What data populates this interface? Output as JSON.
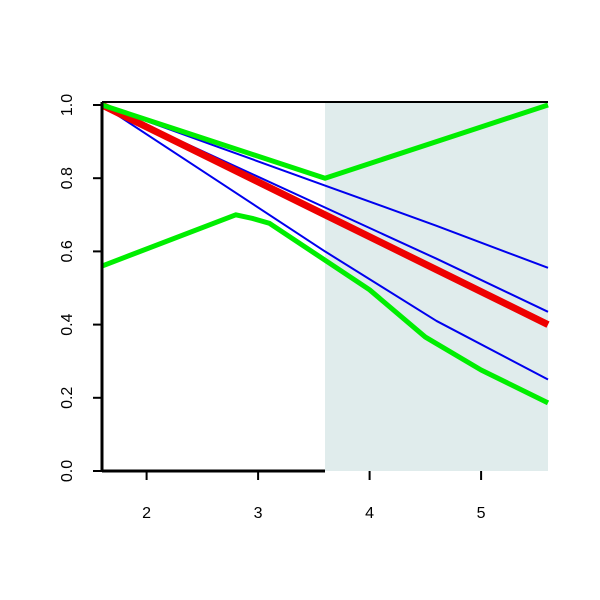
{
  "chart_data": {
    "type": "line",
    "xlim": [
      1.6,
      5.6
    ],
    "ylim": [
      0,
      1
    ],
    "xticks": [
      2,
      3,
      4,
      5
    ],
    "yticks": [
      {
        "value": 0,
        "label": "0.0"
      },
      {
        "value": 0.2,
        "label": "0.2"
      },
      {
        "value": 0.4,
        "label": "0.4"
      },
      {
        "value": 0.6,
        "label": "0.6"
      },
      {
        "value": 0.8,
        "label": "0.8"
      },
      {
        "value": 1,
        "label": "1.0"
      }
    ],
    "shaded_region": {
      "x": [
        3.6,
        5.6
      ],
      "color": "#e0ecec"
    },
    "series": [
      {
        "color": "#0000ee",
        "line_width": 2,
        "x": [
          1.6,
          2.6,
          3.6,
          4.6,
          5.6
        ],
        "values": [
          1.0,
          0.89,
          0.78,
          0.67,
          0.555
        ]
      },
      {
        "color": "#0000ee",
        "line_width": 2,
        "x": [
          1.6,
          2.6,
          3.6,
          4.6,
          5.6
        ],
        "values": [
          1.0,
          0.86,
          0.72,
          0.58,
          0.435
        ]
      },
      {
        "color": "#0000ee",
        "line_width": 2,
        "x": [
          1.6,
          2.6,
          3.6,
          4.6,
          5.6
        ],
        "values": [
          1.0,
          0.8,
          0.6,
          0.41,
          0.25
        ]
      },
      {
        "color": "#ee0000",
        "line_width": 7,
        "x": [
          1.6,
          2.6,
          3.6,
          4.6,
          5.6
        ],
        "values": [
          1.0,
          0.85,
          0.7,
          0.55,
          0.4
        ]
      },
      {
        "color": "#00ee00",
        "line_width": 5,
        "x": [
          1.6,
          3.6,
          5.6
        ],
        "values": [
          1.0,
          0.8,
          1.0
        ]
      },
      {
        "color": "#00ee00",
        "line_width": 5,
        "x": [
          1.6,
          2.8,
          2.95,
          3.1,
          3.6,
          4.0,
          4.5,
          5.0,
          5.6
        ],
        "values": [
          0.56,
          0.7,
          0.69,
          0.677,
          0.576,
          0.495,
          0.366,
          0.276,
          0.186
        ]
      }
    ]
  }
}
